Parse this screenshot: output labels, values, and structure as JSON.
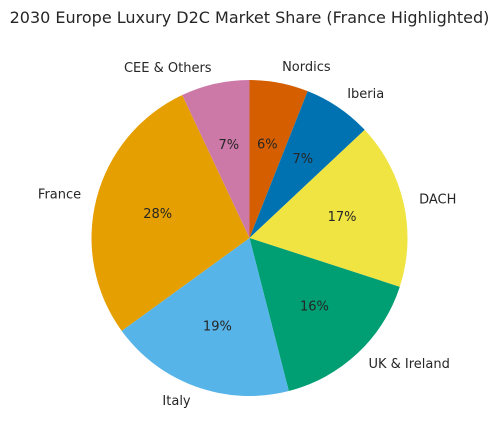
{
  "chart_data": {
    "type": "pie",
    "title": "2030 Europe Luxury D2C Market Share (France Highlighted)",
    "start_angle_deg": 90,
    "direction": "clockwise",
    "slices": [
      {
        "label": "Nordics",
        "value": 6,
        "pct_label": "6%",
        "color": "#d55e00"
      },
      {
        "label": "Iberia",
        "value": 7,
        "pct_label": "7%",
        "color": "#0072b2"
      },
      {
        "label": "DACH",
        "value": 17,
        "pct_label": "17%",
        "color": "#f0e442"
      },
      {
        "label": "UK & Ireland",
        "value": 16,
        "pct_label": "16%",
        "color": "#009e73"
      },
      {
        "label": "Italy",
        "value": 19,
        "pct_label": "19%",
        "color": "#56b4e9"
      },
      {
        "label": "France",
        "value": 28,
        "pct_label": "28%",
        "color": "#e69f00"
      },
      {
        "label": "CEE & Others",
        "value": 7,
        "pct_label": "7%",
        "color": "#cc79a7"
      }
    ]
  }
}
